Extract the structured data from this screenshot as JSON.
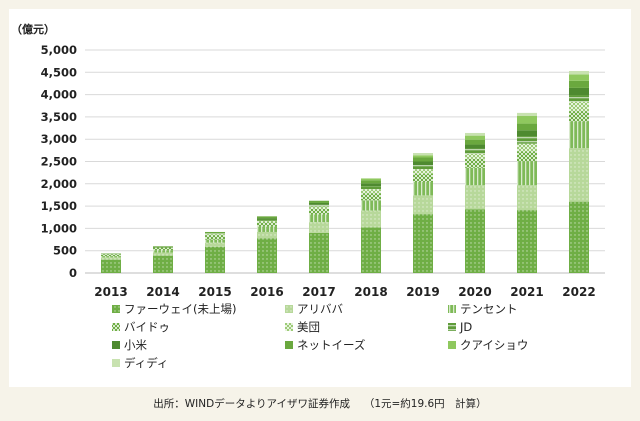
{
  "chart_data": {
    "type": "bar",
    "stacked": true,
    "unit": "（億元）",
    "categories": [
      "2013",
      "2014",
      "2015",
      "2016",
      "2017",
      "2018",
      "2019",
      "2020",
      "2021",
      "2022"
    ],
    "ylim": [
      0,
      5000
    ],
    "yticks": [
      0,
      500,
      1000,
      1500,
      2000,
      2500,
      3000,
      3500,
      4000,
      4500,
      5000
    ],
    "ytick_labels": [
      "0",
      "500",
      "1,000",
      "1,500",
      "2,000",
      "2,500",
      "3,000",
      "3,500",
      "4,000",
      "4,500",
      "5,000"
    ],
    "grid": true,
    "legend_position": "bottom",
    "series": [
      {
        "name": "ファーウェイ(未上場)",
        "color": "#6fae45",
        "pattern": "dots",
        "values": [
          300,
          390,
          590,
          780,
          900,
          1020,
          1320,
          1430,
          1410,
          1600
        ]
      },
      {
        "name": "アリババ",
        "color": "#b7d89a",
        "pattern": "dots",
        "values": [
          50,
          70,
          90,
          140,
          240,
          380,
          420,
          540,
          560,
          1200
        ]
      },
      {
        "name": "テンセント",
        "color": "#7fba58",
        "pattern": "vstripes",
        "values": [
          30,
          50,
          70,
          120,
          170,
          230,
          300,
          390,
          540,
          600
        ]
      },
      {
        "name": "バイドゥ",
        "color": "#6fae45",
        "pattern": "checker",
        "values": [
          40,
          60,
          100,
          100,
          130,
          160,
          180,
          200,
          220,
          230
        ]
      },
      {
        "name": "美団",
        "color": "#9ccb76",
        "pattern": "checker",
        "values": [
          0,
          0,
          20,
          30,
          50,
          90,
          110,
          110,
          170,
          210
        ]
      },
      {
        "name": "JD",
        "color": "#5f9c3a",
        "pattern": "hstripes",
        "values": [
          10,
          15,
          20,
          30,
          40,
          70,
          90,
          120,
          170,
          150
        ]
      },
      {
        "name": "小米",
        "color": "#4e8a30",
        "pattern": "solid",
        "values": [
          0,
          0,
          0,
          30,
          40,
          60,
          80,
          90,
          130,
          160
        ]
      },
      {
        "name": "ネットイーズ",
        "color": "#6aa83e",
        "pattern": "solid",
        "values": [
          10,
          15,
          30,
          40,
          50,
          70,
          90,
          110,
          150,
          160
        ]
      },
      {
        "name": "クアイショウ",
        "color": "#8fc85e",
        "pattern": "solid",
        "values": [
          0,
          0,
          0,
          0,
          0,
          40,
          50,
          90,
          170,
          140
        ]
      },
      {
        "name": "ディディ",
        "color": "#c8e2b0",
        "pattern": "solid",
        "values": [
          0,
          0,
          0,
          0,
          0,
          0,
          50,
          60,
          70,
          80
        ]
      }
    ]
  },
  "source": "出所：WINDデータよりアイザワ証券作成　 （1元=約19.6円　計算）"
}
